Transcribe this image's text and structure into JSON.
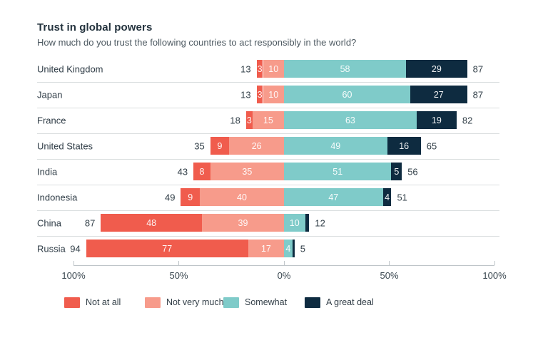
{
  "header": {
    "title": "Trust in global powers",
    "subtitle": "How much do you trust the following countries to act responsibly in the world?"
  },
  "chart_data": {
    "type": "bar",
    "variant": "diverging-stacked-horizontal",
    "title": "Trust in global powers",
    "subtitle": "How much do you trust the following countries to act responsibly in the world?",
    "categories": [
      "United Kingdom",
      "Japan",
      "France",
      "United States",
      "India",
      "Indonesia",
      "China",
      "Russia"
    ],
    "series": [
      {
        "name": "Not at all",
        "direction": "negative",
        "color": "#f05c4d",
        "values": [
          3,
          3,
          3,
          9,
          8,
          9,
          48,
          77
        ]
      },
      {
        "name": "Not very much",
        "direction": "negative",
        "color": "#f79b8b",
        "values": [
          10,
          10,
          15,
          26,
          35,
          40,
          39,
          17
        ]
      },
      {
        "name": "Somewhat",
        "direction": "positive",
        "color": "#7fcbc9",
        "values": [
          58,
          60,
          63,
          49,
          51,
          47,
          10,
          4
        ]
      },
      {
        "name": "A great deal",
        "direction": "positive",
        "color": "#0e2b40",
        "values": [
          29,
          27,
          19,
          16,
          5,
          4,
          2,
          1
        ]
      }
    ],
    "negative_totals": [
      13,
      13,
      18,
      35,
      43,
      49,
      87,
      94
    ],
    "positive_totals": [
      87,
      87,
      82,
      65,
      56,
      51,
      12,
      5
    ],
    "x_axis": {
      "ticks": [
        {
          "label": "100%",
          "value": -100
        },
        {
          "label": "50%",
          "value": -50
        },
        {
          "label": "0%",
          "value": 0
        },
        {
          "label": "50%",
          "value": 50
        },
        {
          "label": "100%",
          "value": 100
        }
      ],
      "range": [
        -100,
        100
      ]
    },
    "legend": [
      "Not at all",
      "Not very much",
      "Somewhat",
      "A great deal"
    ],
    "label_min_value": 3,
    "grid": false,
    "legend_position": "bottom"
  },
  "colors": {
    "not_at_all": "#f05c4d",
    "not_very_much": "#f79b8b",
    "somewhat": "#7fcbc9",
    "a_great_deal": "#0e2b40",
    "bar_label_text": "#ffffff",
    "dark_text": "#24333e",
    "axis": "#bfc5c9",
    "separator": "#dadedf"
  }
}
